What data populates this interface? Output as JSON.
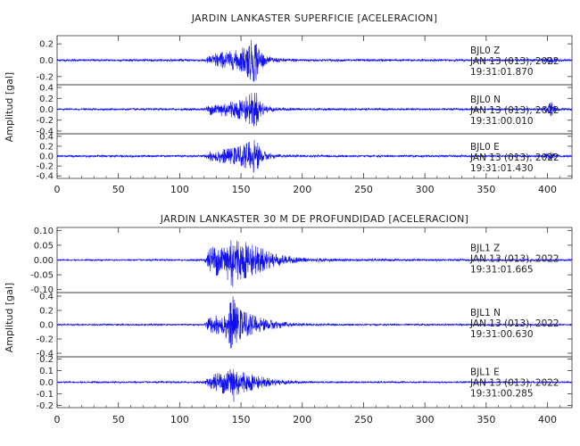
{
  "chart_data": [
    {
      "type": "line",
      "title": "JARDIN LANKASTER SUPERFICIE [ACELERACION]",
      "ylabel": "Amplitud [gal]",
      "xlim": [
        0,
        420
      ],
      "x_ticks": [
        0,
        50,
        100,
        150,
        200,
        250,
        300,
        350,
        400
      ],
      "series": [
        {
          "name": "BJL0 Z",
          "ylim": [
            -0.3,
            0.3
          ],
          "y_ticks": [
            "-0.2",
            "0.0",
            "0.2"
          ],
          "labels": [
            "BJL0   Z",
            "JAN 13 (013), 2022",
            "19:31:01.870"
          ],
          "envelope_x": [
            0,
            120,
            125,
            130,
            135,
            140,
            145,
            150,
            155,
            160,
            163,
            166,
            170,
            180,
            200,
            240,
            300,
            396,
            400,
            403,
            407,
            420
          ],
          "envelope_y": [
            0.012,
            0.015,
            0.06,
            0.09,
            0.1,
            0.11,
            0.12,
            0.14,
            0.2,
            0.27,
            0.24,
            0.12,
            0.05,
            0.025,
            0.016,
            0.014,
            0.013,
            0.014,
            0.04,
            0.05,
            0.02,
            0.012
          ]
        },
        {
          "name": "BJL0 N",
          "ylim": [
            -0.45,
            0.45
          ],
          "y_ticks": [
            "-0.4",
            "-0.2",
            "0.0",
            "0.2",
            "0.4"
          ],
          "labels": [
            "BJL0   N",
            "JAN 13 (013), 2022",
            "19:31:00.010"
          ],
          "envelope_x": [
            0,
            120,
            125,
            130,
            135,
            140,
            145,
            150,
            155,
            160,
            163,
            166,
            170,
            180,
            200,
            240,
            300,
            396,
            400,
            403,
            407,
            420
          ],
          "envelope_y": [
            0.015,
            0.02,
            0.1,
            0.12,
            0.13,
            0.14,
            0.16,
            0.18,
            0.24,
            0.32,
            0.3,
            0.15,
            0.07,
            0.03,
            0.02,
            0.018,
            0.018,
            0.02,
            0.08,
            0.14,
            0.03,
            0.015
          ]
        },
        {
          "name": "BJL0 E",
          "ylim": [
            -0.45,
            0.45
          ],
          "y_ticks": [
            "-0.4",
            "-0.2",
            "0.0",
            "0.2",
            "0.4"
          ],
          "labels": [
            "BJL0   E",
            "JAN 13 (013), 2022",
            "19:31:01.430"
          ],
          "envelope_x": [
            0,
            120,
            125,
            130,
            135,
            140,
            145,
            150,
            155,
            160,
            163,
            166,
            170,
            180,
            200,
            240,
            300,
            396,
            400,
            403,
            407,
            420
          ],
          "envelope_y": [
            0.02,
            0.022,
            0.1,
            0.13,
            0.14,
            0.15,
            0.17,
            0.2,
            0.26,
            0.34,
            0.3,
            0.16,
            0.08,
            0.035,
            0.025,
            0.02,
            0.02,
            0.022,
            0.06,
            0.09,
            0.03,
            0.02
          ]
        }
      ]
    },
    {
      "type": "line",
      "title": "JARDIN LANKASTER 30 M DE PROFUNDIDAD [ACELERACION]",
      "ylabel": "Amplitud [gal]",
      "xlim": [
        0,
        420
      ],
      "x_ticks": [
        0,
        50,
        100,
        150,
        200,
        250,
        300,
        350,
        400
      ],
      "series": [
        {
          "name": "BJL1 Z",
          "ylim": [
            -0.11,
            0.11
          ],
          "y_ticks": [
            "0.10",
            "0.05",
            "0.00",
            "-0.05",
            "-0.10"
          ],
          "labels": [
            "BJL1   Z",
            "JAN 13 (013), 2022",
            "19:31:01.665"
          ],
          "envelope_x": [
            0,
            120,
            124,
            128,
            132,
            136,
            140,
            143,
            146,
            150,
            155,
            160,
            170,
            180,
            190,
            200,
            230,
            420
          ],
          "envelope_y": [
            0.002,
            0.003,
            0.035,
            0.05,
            0.055,
            0.06,
            0.07,
            0.1,
            0.07,
            0.065,
            0.06,
            0.05,
            0.035,
            0.02,
            0.012,
            0.008,
            0.004,
            0.003
          ]
        },
        {
          "name": "BJL1 N",
          "ylim": [
            -0.45,
            0.45
          ],
          "y_ticks": [
            "0.4",
            "0.2",
            "0.0",
            "-0.2",
            "-0.4"
          ],
          "labels": [
            "BJL1   N",
            "JAN 13 (013), 2022",
            "19:31:00.630"
          ],
          "envelope_x": [
            0,
            120,
            124,
            128,
            132,
            136,
            140,
            143,
            146,
            150,
            155,
            160,
            170,
            180,
            190,
            200,
            230,
            420
          ],
          "envelope_y": [
            0.01,
            0.012,
            0.1,
            0.12,
            0.14,
            0.16,
            0.24,
            0.42,
            0.26,
            0.2,
            0.16,
            0.13,
            0.08,
            0.05,
            0.03,
            0.02,
            0.012,
            0.01
          ]
        },
        {
          "name": "BJL1 E",
          "ylim": [
            -0.22,
            0.22
          ],
          "y_ticks": [
            "0.2",
            "0.1",
            "0.0",
            "-0.1",
            "-0.2"
          ],
          "labels": [
            "BJL1   E",
            "JAN 13 (013), 2022",
            "19:31:00.285"
          ],
          "envelope_x": [
            0,
            120,
            124,
            128,
            132,
            136,
            140,
            143,
            146,
            150,
            155,
            160,
            170,
            180,
            190,
            200,
            230,
            420
          ],
          "envelope_y": [
            0.006,
            0.008,
            0.05,
            0.07,
            0.08,
            0.1,
            0.14,
            0.2,
            0.12,
            0.1,
            0.08,
            0.065,
            0.04,
            0.025,
            0.016,
            0.01,
            0.007,
            0.006
          ]
        }
      ]
    }
  ],
  "colors": {
    "trace": "#1010ee",
    "axis": "#333333",
    "text": "#222222"
  }
}
